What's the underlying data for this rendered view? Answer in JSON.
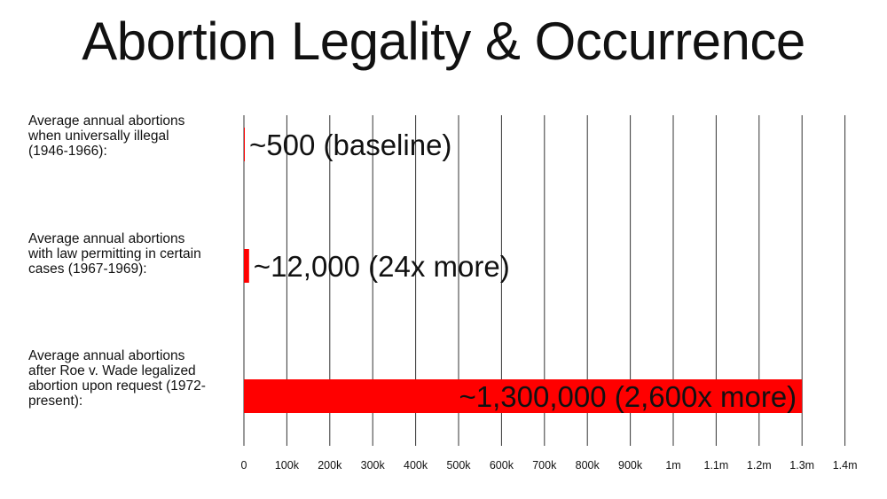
{
  "chart_data": {
    "type": "bar",
    "orientation": "horizontal",
    "title": "Abortion Legality & Occurrence",
    "xlabel": "",
    "ylabel": "",
    "categories": [
      "Average annual abortions when universally illegal (1946-1966):",
      "Average annual abortions with law permitting in certain cases (1967-1969):",
      "Average annual abortions after Roe v. Wade legalized abortion upon request (1972-present):"
    ],
    "values": [
      500,
      12000,
      1300000
    ],
    "data_labels": [
      "~500 (baseline)",
      "~12,000 (24x more)",
      "~1,300,000 (2,600x more)"
    ],
    "xlim": [
      0,
      1400000
    ],
    "xticks": [
      0,
      100000,
      200000,
      300000,
      400000,
      500000,
      600000,
      700000,
      800000,
      900000,
      1000000,
      1100000,
      1200000,
      1300000,
      1400000
    ],
    "xtick_labels": [
      "0",
      "100k",
      "200k",
      "300k",
      "400k",
      "500k",
      "600k",
      "700k",
      "800k",
      "900k",
      "1m",
      "1.1m",
      "1.2m",
      "1.3m",
      "1.4m"
    ],
    "grid": true,
    "bar_color": "#ff0000",
    "text_color": "#111111",
    "grid_color": "#333333"
  }
}
